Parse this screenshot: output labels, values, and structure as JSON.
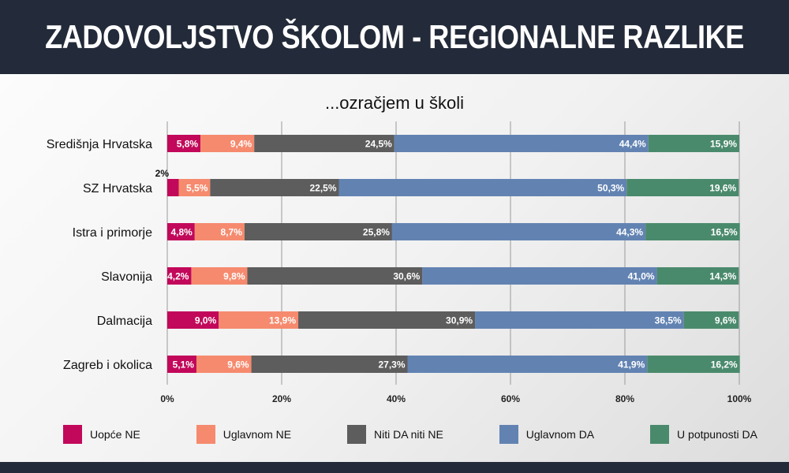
{
  "header": {
    "title": "ZADOVOLJSTVO ŠKOLOM - REGIONALNE RAZLIKE"
  },
  "chart_data": {
    "type": "bar",
    "orientation": "horizontal",
    "stacked": true,
    "title": "...ozračjem u školi",
    "categories": [
      "Središnja Hrvatska",
      "SZ Hrvatska",
      "Istra i primorje",
      "Slavonija",
      "Dalmacija",
      "Zagreb i okolica"
    ],
    "series": [
      {
        "name": "Uopće NE",
        "color": "#c2085a",
        "values": [
          5.8,
          2,
          4.8,
          4.2,
          9.0,
          5.1
        ],
        "labels": [
          "5,8%",
          "2%",
          "4,8%",
          "4,2%",
          "9,0%",
          "5,1%"
        ]
      },
      {
        "name": "Uglavnom NE",
        "color": "#f68a6e",
        "values": [
          9.4,
          5.5,
          8.7,
          9.8,
          13.9,
          9.6
        ],
        "labels": [
          "9,4%",
          "5,5%",
          "8,7%",
          "9,8%",
          "13,9%",
          "9,6%"
        ]
      },
      {
        "name": "Niti DA niti NE",
        "color": "#5d5d5d",
        "values": [
          24.5,
          22.5,
          25.8,
          30.6,
          30.9,
          27.3
        ],
        "labels": [
          "24,5%",
          "22,5%",
          "25,8%",
          "30,6%",
          "30,9%",
          "27,3%"
        ]
      },
      {
        "name": "Uglavnom DA",
        "color": "#6283b2",
        "values": [
          44.4,
          50.3,
          44.3,
          41.0,
          36.5,
          41.9
        ],
        "labels": [
          "44,4%",
          "50,3%",
          "44,3%",
          "41,0%",
          "36,5%",
          "41,9%"
        ]
      },
      {
        "name": "U potpunosti DA",
        "color": "#4a8a6c",
        "values": [
          15.9,
          19.6,
          16.5,
          14.3,
          9.6,
          16.2
        ],
        "labels": [
          "15,9%",
          "19,6%",
          "16,5%",
          "14,3%",
          "9,6%",
          "16,2%"
        ]
      }
    ],
    "xlim": [
      0,
      100
    ],
    "x_ticks": [
      "0%",
      "20%",
      "40%",
      "60%",
      "80%",
      "100%"
    ],
    "grid": true,
    "legend_position": "bottom"
  }
}
